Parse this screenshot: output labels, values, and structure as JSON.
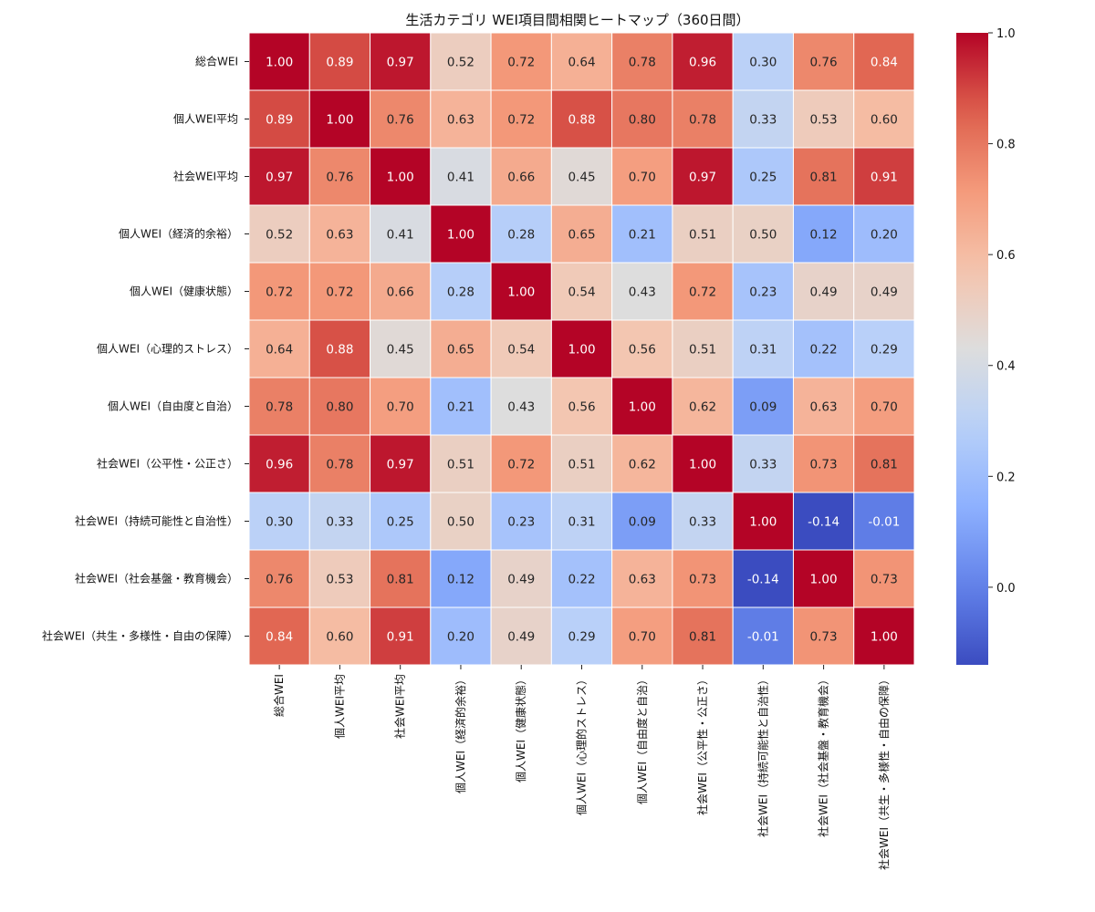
{
  "chart_data": {
    "type": "heatmap",
    "title": "生活カテゴリ WEI項目間相関ヒートマップ（360日間）",
    "labels": [
      "総合WEI",
      "個人WEI平均",
      "社会WEI平均",
      "個人WEI（経済的余裕）",
      "個人WEI（健康状態）",
      "個人WEI（心理的ストレス）",
      "個人WEI（自由度と自治）",
      "社会WEI（公平性・公正さ）",
      "社会WEI（持続可能性と自治性）",
      "社会WEI（社会基盤・教育機会）",
      "社会WEI（共生・多様性・自由の保障）"
    ],
    "matrix": [
      [
        1.0,
        0.89,
        0.97,
        0.52,
        0.72,
        0.64,
        0.78,
        0.96,
        0.3,
        0.76,
        0.84
      ],
      [
        0.89,
        1.0,
        0.76,
        0.63,
        0.72,
        0.88,
        0.8,
        0.78,
        0.33,
        0.53,
        0.6
      ],
      [
        0.97,
        0.76,
        1.0,
        0.41,
        0.66,
        0.45,
        0.7,
        0.97,
        0.25,
        0.81,
        0.91
      ],
      [
        0.52,
        0.63,
        0.41,
        1.0,
        0.28,
        0.65,
        0.21,
        0.51,
        0.5,
        0.12,
        0.2
      ],
      [
        0.72,
        0.72,
        0.66,
        0.28,
        1.0,
        0.54,
        0.43,
        0.72,
        0.23,
        0.49,
        0.49
      ],
      [
        0.64,
        0.88,
        0.45,
        0.65,
        0.54,
        1.0,
        0.56,
        0.51,
        0.31,
        0.22,
        0.29
      ],
      [
        0.78,
        0.8,
        0.7,
        0.21,
        0.43,
        0.56,
        1.0,
        0.62,
        0.09,
        0.63,
        0.7
      ],
      [
        0.96,
        0.78,
        0.97,
        0.51,
        0.72,
        0.51,
        0.62,
        1.0,
        0.33,
        0.73,
        0.81
      ],
      [
        0.3,
        0.33,
        0.25,
        0.5,
        0.23,
        0.31,
        0.09,
        0.33,
        1.0,
        -0.14,
        -0.01
      ],
      [
        0.76,
        0.53,
        0.81,
        0.12,
        0.49,
        0.22,
        0.63,
        0.73,
        -0.14,
        1.0,
        0.73
      ],
      [
        0.84,
        0.6,
        0.91,
        0.2,
        0.49,
        0.29,
        0.7,
        0.81,
        -0.01,
        0.73,
        1.0
      ]
    ],
    "value_format": "2 decimals",
    "colormap": "coolwarm",
    "vmin": -0.14,
    "vmax": 1.0,
    "colorbar_ticks": [
      1.0,
      0.8,
      0.6,
      0.4,
      0.2,
      0.0
    ],
    "colorbar_tick_labels": [
      "1.0",
      "0.8",
      "0.6",
      "0.4",
      "0.2",
      "0.0"
    ],
    "cell_border_color": "#ffffff"
  }
}
